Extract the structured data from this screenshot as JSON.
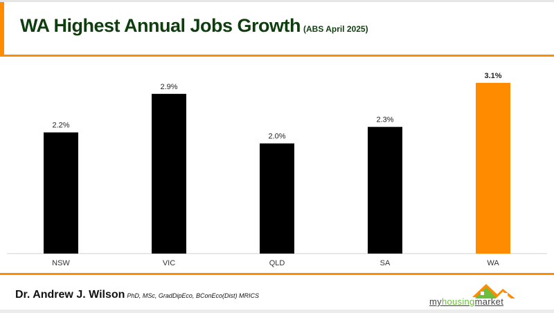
{
  "header": {
    "title": "WA Highest Annual Jobs Growth",
    "subtitle": "(ABS April 2025)"
  },
  "footer": {
    "author": "Dr. Andrew J. Wilson",
    "credentials": "PhD, MSc, GradDipEco, BConEco(Dist) MRICS",
    "logo": {
      "part1": "my",
      "part2": "housing",
      "part3": "market"
    }
  },
  "colors": {
    "accent": "#ff8c00",
    "bar": "#000000",
    "highlight": "#ff8c00",
    "title": "#0e3d0e"
  },
  "chart_data": {
    "type": "bar",
    "categories": [
      "NSW",
      "VIC",
      "QLD",
      "SA",
      "WA"
    ],
    "values": [
      2.2,
      2.9,
      2.0,
      2.3,
      3.1
    ],
    "labels": [
      "2.2%",
      "2.9%",
      "2.0%",
      "2.3%",
      "3.1%"
    ],
    "highlight": "WA",
    "ylim": [
      0,
      3.5
    ],
    "grid": false,
    "xlabel": "",
    "ylabel": ""
  }
}
